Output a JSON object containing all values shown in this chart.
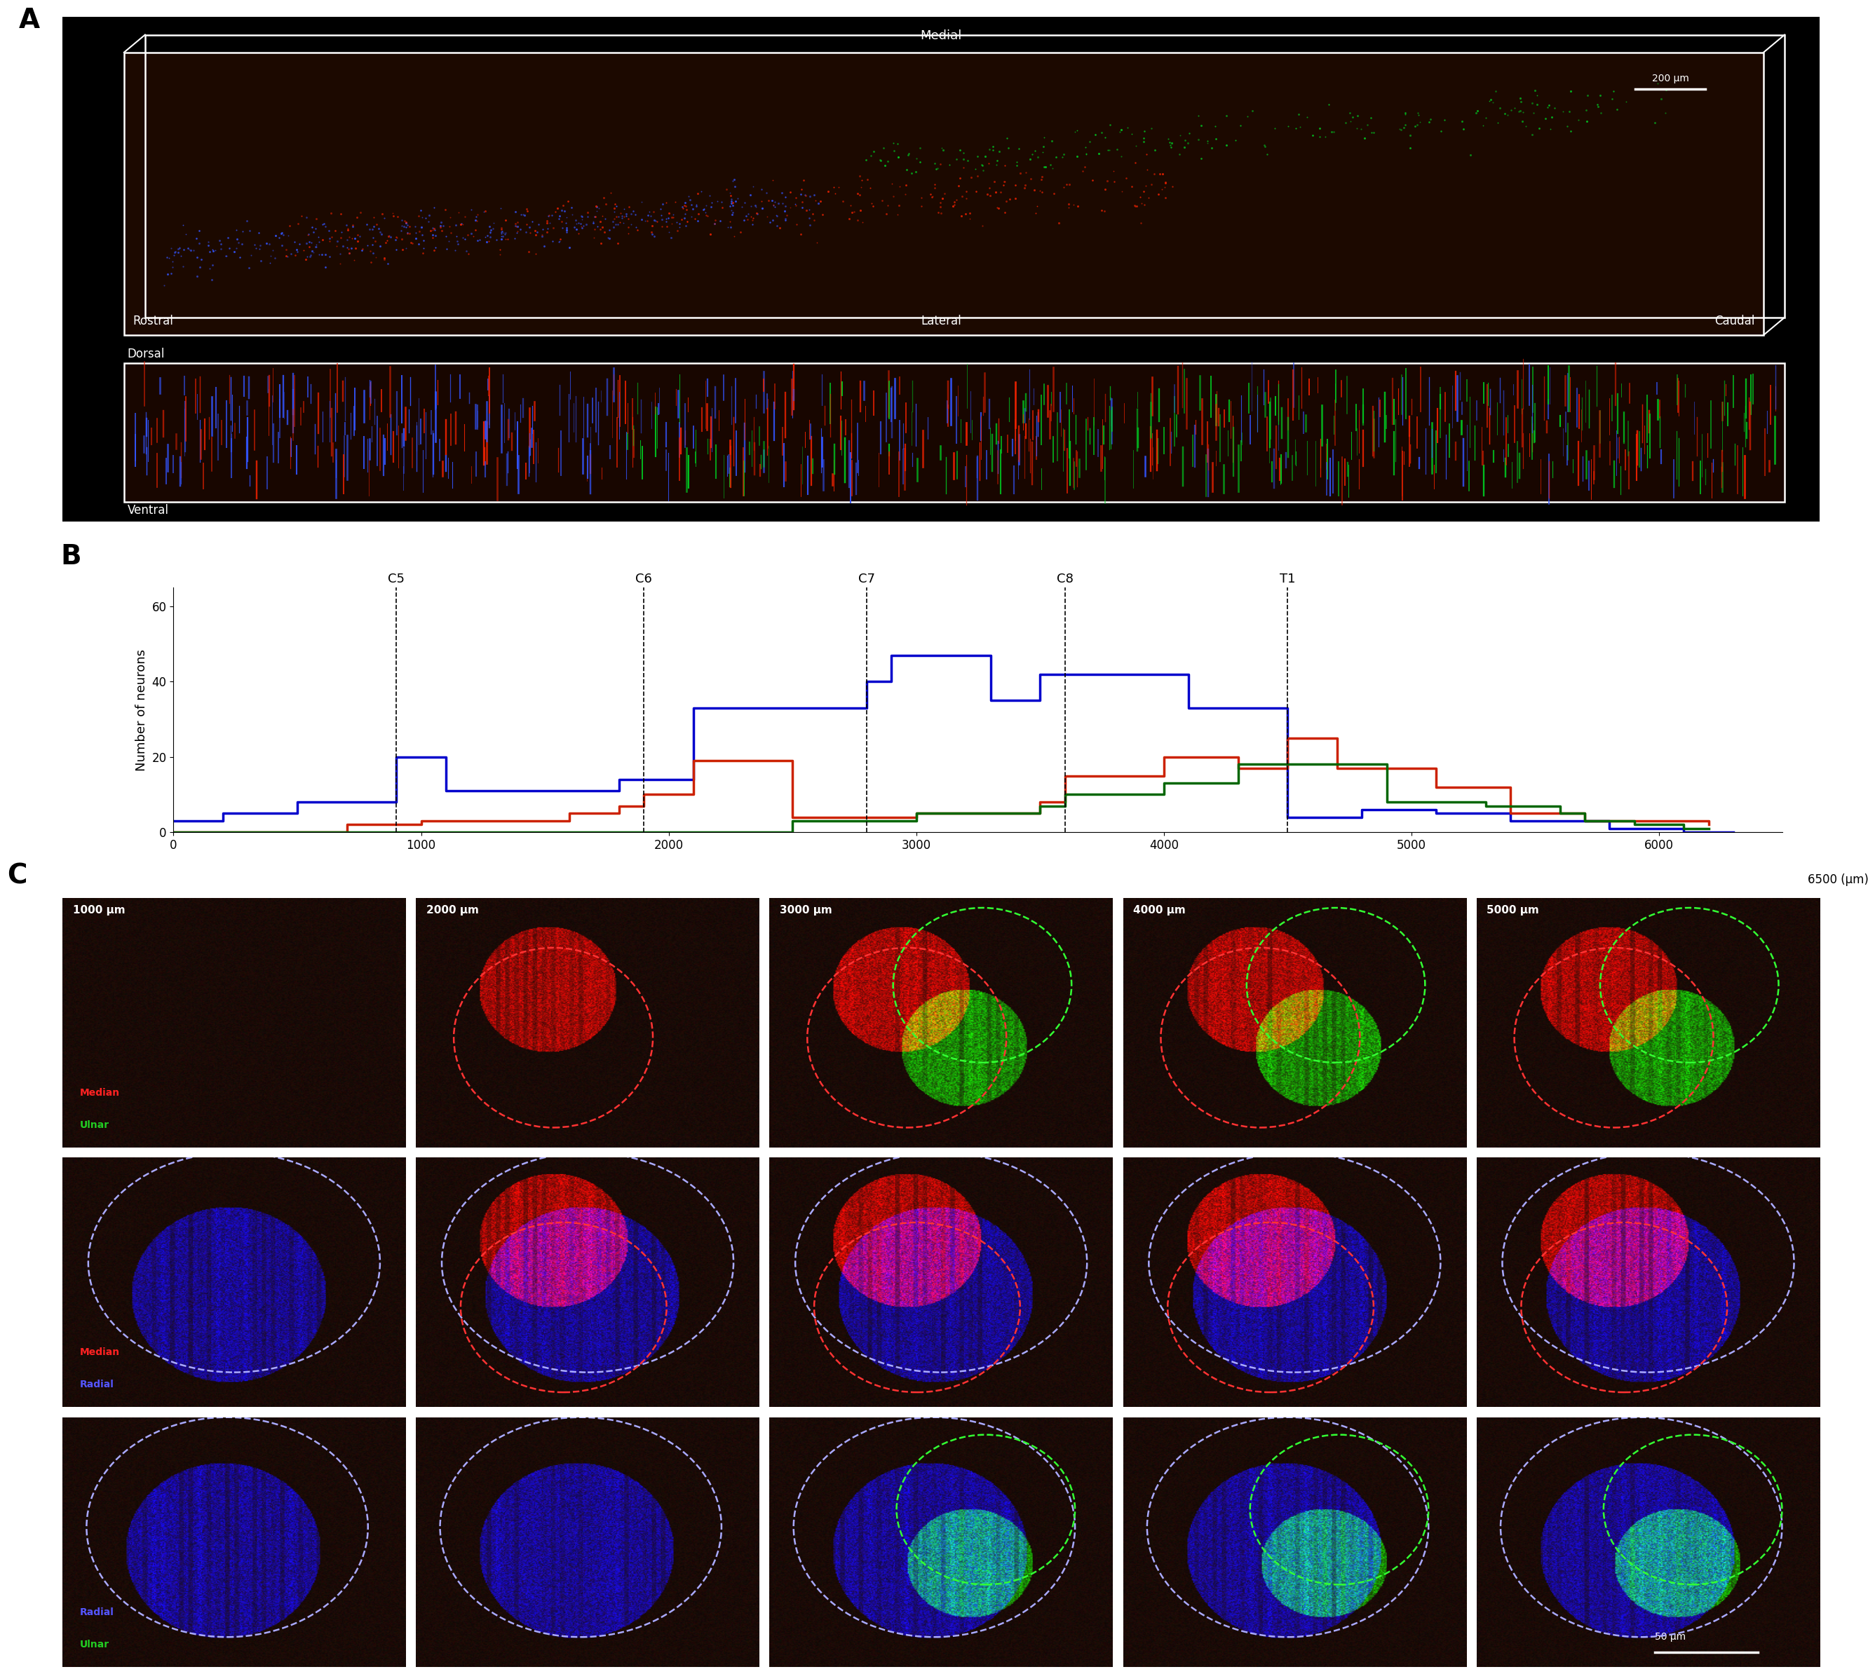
{
  "panel_labels": [
    "A",
    "B",
    "C"
  ],
  "panel_label_fontsize": 28,
  "panel_label_weight": "bold",
  "panel_A_top_labels": {
    "medial": "Medial",
    "lateral": "Lateral",
    "rostral": "Rostral",
    "caudal": "Caudal",
    "scalebar": "200 μm"
  },
  "panel_A_bottom_labels": {
    "dorsal": "Dorsal",
    "ventral": "Ventral"
  },
  "panel_B": {
    "ylabel": "Number of neurons",
    "xlabel": "6500 (μm)",
    "xticks": [
      0,
      1000,
      2000,
      3000,
      4000,
      5000,
      6000
    ],
    "xtick_labels": [
      "0",
      "1000",
      "2000",
      "3000",
      "4000",
      "5000",
      "6000"
    ],
    "yticks": [
      0,
      20,
      40,
      60
    ],
    "ylim": [
      0,
      65
    ],
    "xlim": [
      0,
      6500
    ],
    "vlines": [
      {
        "x": 900,
        "label": "C5"
      },
      {
        "x": 1900,
        "label": "C6"
      },
      {
        "x": 2800,
        "label": "C7"
      },
      {
        "x": 3600,
        "label": "C8"
      },
      {
        "x": 4500,
        "label": "T1"
      }
    ],
    "blue_x": [
      0,
      200,
      400,
      500,
      600,
      700,
      800,
      900,
      1000,
      1100,
      1200,
      1300,
      1400,
      1500,
      1600,
      1700,
      1800,
      1900,
      2000,
      2100,
      2200,
      2300,
      2400,
      2500,
      2600,
      2700,
      2800,
      2900,
      3000,
      3100,
      3200,
      3300,
      3400,
      3500,
      3600,
      3700,
      3800,
      3900,
      4000,
      4100,
      4200,
      4300,
      4400,
      4500,
      4600,
      4700,
      4800,
      4900,
      5000,
      5100,
      5200,
      5300,
      5400,
      5500,
      5600,
      5700,
      5800,
      5900,
      6000,
      6100,
      6200,
      6300
    ],
    "blue_y": [
      3,
      5,
      5,
      8,
      8,
      8,
      8,
      20,
      20,
      11,
      11,
      11,
      11,
      11,
      11,
      11,
      14,
      14,
      14,
      33,
      33,
      33,
      33,
      33,
      33,
      33,
      40,
      47,
      47,
      47,
      47,
      35,
      35,
      42,
      42,
      42,
      42,
      42,
      42,
      33,
      33,
      33,
      33,
      4,
      4,
      4,
      6,
      6,
      6,
      5,
      5,
      5,
      3,
      3,
      3,
      3,
      1,
      1,
      1,
      0,
      0,
      0
    ],
    "red_x": [
      0,
      200,
      400,
      500,
      600,
      700,
      800,
      900,
      1000,
      1100,
      1200,
      1300,
      1400,
      1500,
      1600,
      1700,
      1800,
      1900,
      2000,
      2100,
      2200,
      2300,
      2400,
      2500,
      2600,
      2700,
      2800,
      2900,
      3000,
      3100,
      3200,
      3300,
      3400,
      3500,
      3600,
      3700,
      3800,
      3900,
      4000,
      4100,
      4200,
      4300,
      4400,
      4500,
      4600,
      4700,
      4800,
      4900,
      5000,
      5100,
      5200,
      5300,
      5400,
      5500,
      5600,
      5700,
      5800,
      5900,
      6000,
      6100,
      6200
    ],
    "red_y": [
      0,
      0,
      0,
      0,
      0,
      2,
      2,
      2,
      3,
      3,
      3,
      3,
      3,
      3,
      5,
      5,
      7,
      10,
      10,
      19,
      19,
      19,
      19,
      4,
      4,
      4,
      4,
      4,
      5,
      5,
      5,
      5,
      5,
      8,
      15,
      15,
      15,
      15,
      20,
      20,
      20,
      17,
      17,
      25,
      25,
      17,
      17,
      17,
      17,
      12,
      12,
      12,
      5,
      5,
      5,
      3,
      3,
      3,
      3,
      3,
      2
    ],
    "green_x": [
      0,
      200,
      400,
      500,
      600,
      700,
      800,
      900,
      1000,
      1100,
      1200,
      1300,
      1400,
      1500,
      1600,
      1700,
      1800,
      1900,
      2000,
      2100,
      2200,
      2300,
      2400,
      2500,
      2600,
      2700,
      2800,
      2900,
      3000,
      3100,
      3200,
      3300,
      3400,
      3500,
      3600,
      3700,
      3800,
      3900,
      4000,
      4100,
      4200,
      4300,
      4400,
      4500,
      4600,
      4700,
      4800,
      4900,
      5000,
      5100,
      5200,
      5300,
      5400,
      5500,
      5600,
      5700,
      5800,
      5900,
      6000,
      6100,
      6200
    ],
    "green_y": [
      0,
      0,
      0,
      0,
      0,
      0,
      0,
      0,
      0,
      0,
      0,
      0,
      0,
      0,
      0,
      0,
      0,
      0,
      0,
      0,
      0,
      0,
      0,
      3,
      3,
      3,
      3,
      3,
      5,
      5,
      5,
      5,
      5,
      7,
      10,
      10,
      10,
      10,
      13,
      13,
      13,
      18,
      18,
      18,
      18,
      18,
      18,
      8,
      8,
      8,
      8,
      7,
      7,
      7,
      5,
      3,
      3,
      2,
      2,
      1,
      1
    ]
  },
  "panel_C": {
    "col_labels": [
      "1000 μm",
      "2000 μm",
      "3000 μm",
      "4000 μm",
      "5000 μm"
    ],
    "row_info": [
      [
        [
          "red",
          "Median"
        ],
        [
          "green",
          "Ulnar"
        ]
      ],
      [
        [
          "red",
          "Median"
        ],
        [
          "blue",
          "Radial"
        ]
      ],
      [
        [
          "blue",
          "Radial"
        ],
        [
          "green",
          "Ulnar"
        ]
      ]
    ],
    "scalebar": "50 μm",
    "label_colors": {
      "red": "#ff2222",
      "green": "#22cc22",
      "blue": "#5555ff",
      "white": "#ffffff"
    }
  }
}
